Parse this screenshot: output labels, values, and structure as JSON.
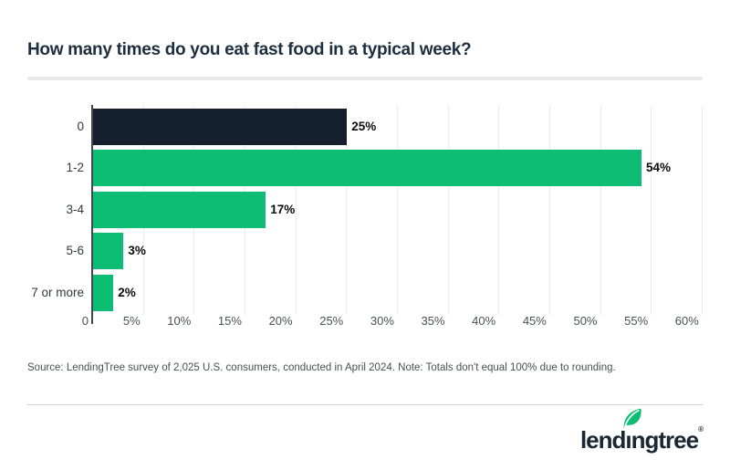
{
  "title": "How many times do you eat fast food in a typical week?",
  "source_note": "Source: LendingTree survey of 2,025 U.S. consumers, conducted in April 2024. Note: Totals don't equal 100% due to rounding.",
  "logo": {
    "brand": "lendingtree",
    "text_pre": "lend",
    "text_i": "ı",
    "text_post": "ngtree",
    "registered_mark": "®",
    "leaf_icon": "leaf-icon"
  },
  "colors": {
    "dark_navy_bar": "#14202e",
    "brand_green": "#0ebd74",
    "title_navy": "#1c2e3f",
    "gridline": "#ebeced",
    "axis": "#42474d"
  },
  "chart_data": {
    "type": "bar",
    "orientation": "horizontal",
    "title": "How many times do you eat fast food in a typical week?",
    "categories": [
      "0",
      "1-2",
      "3-4",
      "5-6",
      "7 or more"
    ],
    "values": [
      25,
      54,
      17,
      3,
      2
    ],
    "value_labels": [
      "25%",
      "54%",
      "17%",
      "3%",
      "2%"
    ],
    "bar_colors": [
      "#14202e",
      "#0ebd74",
      "#0ebd74",
      "#0ebd74",
      "#0ebd74"
    ],
    "x_tick_labels": [
      "0",
      "5%",
      "10%",
      "15%",
      "20%",
      "25%",
      "30%",
      "35%",
      "40%",
      "45%",
      "50%",
      "55%",
      "60%"
    ],
    "x_tick_values": [
      0,
      5,
      10,
      15,
      20,
      25,
      30,
      35,
      40,
      45,
      50,
      55,
      60
    ],
    "xlim": [
      0,
      60
    ],
    "xlabel": "",
    "ylabel": "",
    "grid": true,
    "legend": false
  }
}
